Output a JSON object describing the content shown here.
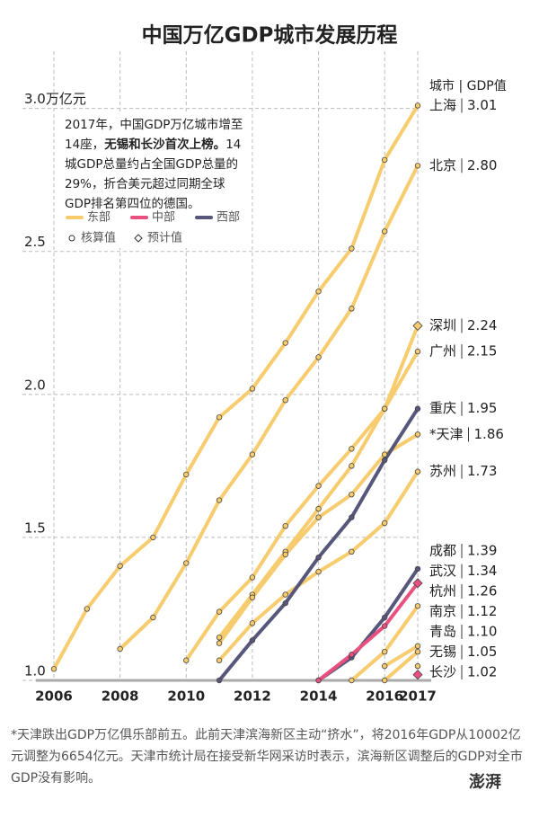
{
  "chart_data": {
    "type": "line",
    "title": "中国万亿GDP城市发展历程",
    "label_header": "城市 | GDP值",
    "note": [
      "2017年，中国GDP万亿城市增至14座，",
      "无锡和长沙首次上榜。",
      "14城GDP总量约占全国GDP总量的29%，折合美元超过同期全球GDP排名第四位的德国。"
    ],
    "footnote": "*天津跌出GDP万亿俱乐部前五。此前天津滨海新区主动“挤水”，将2016年GDP从10002亿元调整为6654亿元。天津市统计局在接受新华网采访时表示，滨海新区调整后的GDP对全市GDP没有影响。",
    "watermark": "澎湃",
    "xlim": [
      2006,
      2017
    ],
    "xticks": [
      2006,
      2008,
      2010,
      2012,
      2014,
      2016,
      2017
    ],
    "ylim": [
      1.0,
      3.2
    ],
    "yticks": [
      {
        "value": 1.0,
        "label": "1.0"
      },
      1.5,
      {
        "value": 2.0,
        "label": "2.0"
      },
      2.5,
      {
        "value": 3.0,
        "label": "3.0万亿元"
      }
    ],
    "grid": true,
    "legend": {
      "regions": [
        {
          "name": "东部",
          "color": "#f7cc6e"
        },
        {
          "name": "中部",
          "color": "#e9507f"
        },
        {
          "name": "西部",
          "color": "#57577c"
        }
      ],
      "markers": [
        {
          "name": "核算值",
          "shape": "circle"
        },
        {
          "name": "预计值",
          "shape": "diamond"
        }
      ]
    },
    "series": [
      {
        "name": "上海",
        "color": "#f7cc6e",
        "x": [
          2006,
          2007,
          2008,
          2009,
          2010,
          2011,
          2012,
          2013,
          2014,
          2015,
          2016,
          2017
        ],
        "values": [
          1.04,
          1.25,
          1.4,
          1.5,
          1.72,
          1.92,
          2.02,
          2.18,
          2.36,
          2.51,
          2.82,
          3.01
        ]
      },
      {
        "name": "北京",
        "color": "#f7cc6e",
        "x": [
          2008,
          2009,
          2010,
          2011,
          2012,
          2013,
          2014,
          2015,
          2016,
          2017
        ],
        "values": [
          1.11,
          1.22,
          1.41,
          1.63,
          1.79,
          1.98,
          2.13,
          2.3,
          2.57,
          2.8
        ],
        "value_labels": [
          null,
          null,
          null,
          null,
          null,
          null,
          null,
          null,
          null,
          "2.80"
        ]
      },
      {
        "name": "深圳",
        "color": "#f7cc6e",
        "forecast": true,
        "x": [
          2011,
          2012,
          2013,
          2014,
          2015,
          2016,
          2017
        ],
        "values": [
          1.15,
          1.3,
          1.45,
          1.6,
          1.75,
          1.95,
          2.24
        ]
      },
      {
        "name": "广州",
        "color": "#f7cc6e",
        "x": [
          2010,
          2011,
          2012,
          2013,
          2014,
          2015,
          2016,
          2017
        ],
        "values": [
          1.07,
          1.24,
          1.36,
          1.54,
          1.68,
          1.81,
          1.95,
          2.15
        ]
      },
      {
        "name": "*天津",
        "color": "#f7cc6e",
        "x": [
          2011,
          2012,
          2013,
          2014,
          2015,
          2016,
          2017
        ],
        "values": [
          1.13,
          1.29,
          1.44,
          1.57,
          1.65,
          1.79,
          1.86
        ]
      },
      {
        "name": "苏州",
        "color": "#f7cc6e",
        "x": [
          2011,
          2012,
          2013,
          2014,
          2015,
          2016,
          2017
        ],
        "values": [
          1.07,
          1.2,
          1.3,
          1.38,
          1.45,
          1.55,
          1.73
        ]
      },
      {
        "name": "杭州",
        "color": "#f7cc6e",
        "x": [
          2015,
          2016,
          2017
        ],
        "values": [
          1.0,
          1.1,
          1.26
        ]
      },
      {
        "name": "南京",
        "color": "#f7cc6e",
        "x": [
          2016,
          2017
        ],
        "values": [
          1.05,
          1.12
        ]
      },
      {
        "name": "青岛",
        "color": "#f7cc6e",
        "x": [
          2016,
          2017
        ],
        "values": [
          1.0,
          1.1
        ],
        "value_labels": [
          null,
          "1.10"
        ]
      },
      {
        "name": "无锡",
        "color": "#f7cc6e",
        "x": [
          2017
        ],
        "values": [
          1.05
        ]
      },
      {
        "name": "重庆",
        "color": "#57577c",
        "x": [
          2011,
          2012,
          2013,
          2014,
          2015,
          2016,
          2017
        ],
        "values": [
          1.0,
          1.14,
          1.27,
          1.43,
          1.57,
          1.77,
          1.95
        ]
      },
      {
        "name": "成都",
        "color": "#57577c",
        "x": [
          2014,
          2015,
          2016,
          2017
        ],
        "values": [
          1.0,
          1.08,
          1.22,
          1.39
        ]
      },
      {
        "name": "武汉",
        "color": "#e9507f",
        "forecast": true,
        "x": [
          2014,
          2015,
          2016,
          2017
        ],
        "values": [
          1.0,
          1.09,
          1.19,
          1.34
        ]
      },
      {
        "name": "长沙",
        "color": "#e9507f",
        "forecast": true,
        "x": [
          2017
        ],
        "values": [
          1.02
        ]
      }
    ]
  }
}
